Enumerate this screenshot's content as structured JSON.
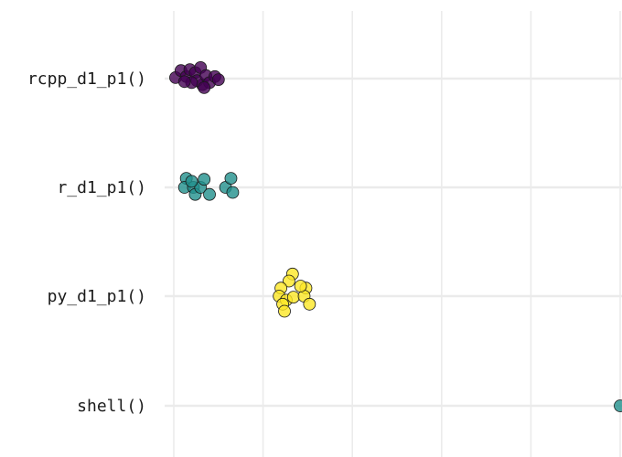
{
  "chart_data": {
    "type": "scatter",
    "title": "",
    "xlabel": "",
    "ylabel": "",
    "categories": [
      "rcpp_d1_p1()",
      "r_d1_p1()",
      "py_d1_p1()",
      "shell()"
    ],
    "grid": true,
    "legend": "none",
    "xlim": [
      0,
      5
    ],
    "x_gridlines": [
      0,
      1,
      2,
      3,
      4,
      5
    ],
    "series": [
      {
        "category": "rcpp_d1_p1()",
        "color": "#440154",
        "opacity": 0.8,
        "points": [
          {
            "x": 0.02,
            "y": 0.01
          },
          {
            "x": 0.08,
            "y": 0.08
          },
          {
            "x": 0.14,
            "y": 0.02
          },
          {
            "x": 0.18,
            "y": 0.09
          },
          {
            "x": 0.24,
            "y": 0.06
          },
          {
            "x": 0.3,
            "y": 0.11
          },
          {
            "x": 0.32,
            "y": -0.06
          },
          {
            "x": 0.26,
            "y": -0.02
          },
          {
            "x": 0.36,
            "y": 0.03
          },
          {
            "x": 0.4,
            "y": -0.04
          },
          {
            "x": 0.2,
            "y": -0.04
          },
          {
            "x": 0.12,
            "y": -0.03
          },
          {
            "x": 0.34,
            "y": -0.09
          },
          {
            "x": 0.46,
            "y": 0.02
          },
          {
            "x": 0.5,
            "y": -0.01
          }
        ]
      },
      {
        "category": "r_d1_p1()",
        "color": "#21908C",
        "opacity": 0.8,
        "points": [
          {
            "x": 0.14,
            "y": 0.09
          },
          {
            "x": 0.12,
            "y": 0.0
          },
          {
            "x": 0.22,
            "y": 0.0
          },
          {
            "x": 0.24,
            "y": -0.07
          },
          {
            "x": 0.3,
            "y": 0.0
          },
          {
            "x": 0.34,
            "y": 0.08
          },
          {
            "x": 0.4,
            "y": -0.07
          },
          {
            "x": 0.58,
            "y": 0.0
          },
          {
            "x": 0.64,
            "y": 0.09
          },
          {
            "x": 0.66,
            "y": -0.05
          },
          {
            "x": 0.2,
            "y": 0.06
          }
        ]
      },
      {
        "category": "py_d1_p1()",
        "color": "#FDE725",
        "opacity": 0.8,
        "points": [
          {
            "x": 1.33,
            "y": 0.22
          },
          {
            "x": 1.29,
            "y": 0.15
          },
          {
            "x": 1.2,
            "y": 0.08
          },
          {
            "x": 1.18,
            "y": 0.0
          },
          {
            "x": 1.26,
            "y": -0.04
          },
          {
            "x": 1.34,
            "y": -0.01
          },
          {
            "x": 1.22,
            "y": -0.08
          },
          {
            "x": 1.24,
            "y": -0.15
          },
          {
            "x": 1.48,
            "y": 0.08
          },
          {
            "x": 1.46,
            "y": 0.0
          },
          {
            "x": 1.52,
            "y": -0.08
          },
          {
            "x": 1.42,
            "y": 0.1
          }
        ]
      },
      {
        "category": "shell()",
        "color": "#21908C",
        "opacity": 0.8,
        "points": [
          {
            "x": 5.0,
            "y": 0.0
          }
        ]
      }
    ]
  }
}
